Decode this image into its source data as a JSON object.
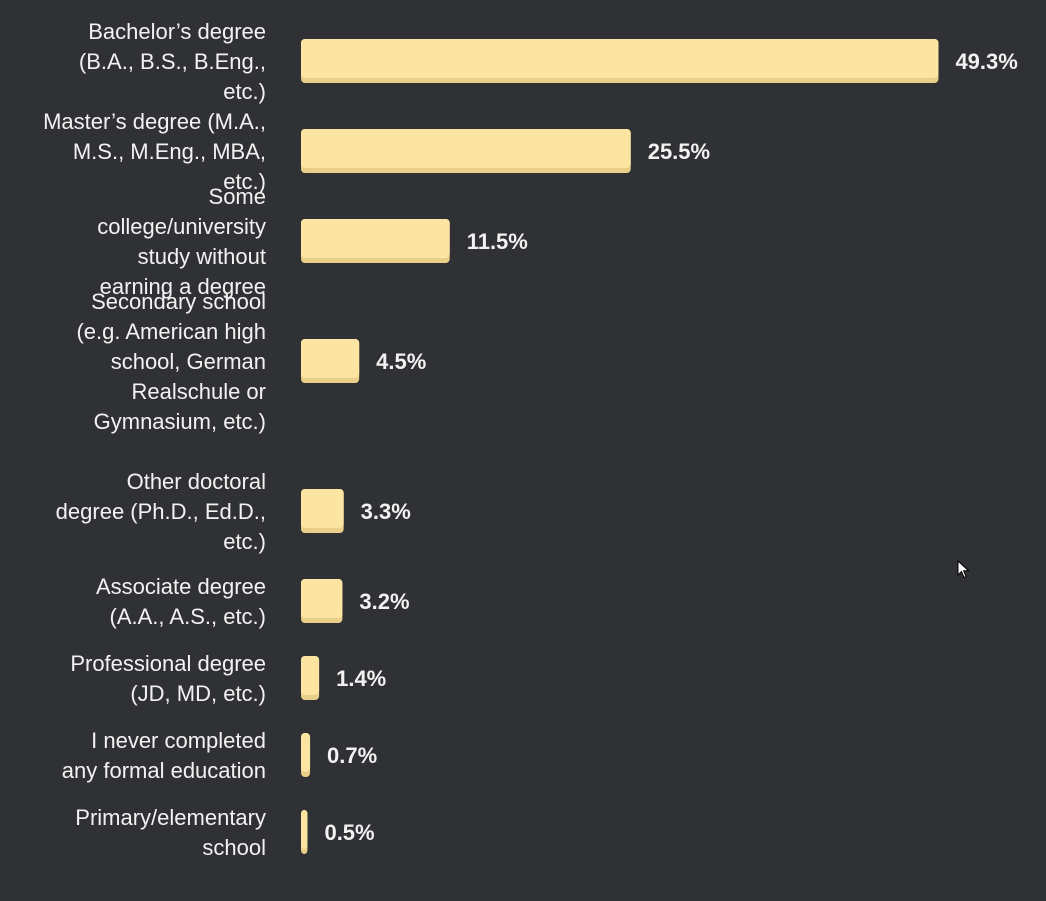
{
  "chart_data": {
    "type": "bar",
    "orientation": "horizontal",
    "colors": {
      "bar": "#fce4a2",
      "bar_shade": "#e9cf8a",
      "text": "#f2f2f2",
      "background": "#2f3134"
    },
    "value_suffix": "%",
    "categories": [
      {
        "label": "Bachelor’s degree (B.A., B.S., B.Eng., etc.)",
        "lines": [
          "Bachelor’s degree",
          "(B.A., B.S., B.Eng.,",
          "etc.)"
        ],
        "value": 49.3
      },
      {
        "label": "Master’s degree (M.A., M.S., M.Eng., MBA, etc.)",
        "lines": [
          "Master’s degree (M.A.,",
          "M.S., M.Eng., MBA,",
          "etc.)"
        ],
        "value": 25.5
      },
      {
        "label": "Some college/university study without earning a degree",
        "lines": [
          "Some",
          "college/university",
          "study without",
          "earning a degree"
        ],
        "value": 11.5
      },
      {
        "label": "Secondary school (e.g. American high school, German Realschule or Gymnasium, etc.)",
        "lines": [
          "Secondary school",
          "(e.g. American high",
          "school, German",
          "Realschule or",
          "Gymnasium, etc.)"
        ],
        "value": 4.5
      },
      {
        "label": "Other doctoral degree (Ph.D., Ed.D., etc.)",
        "lines": [
          "Other doctoral",
          "degree (Ph.D., Ed.D.,",
          "etc.)"
        ],
        "value": 3.3
      },
      {
        "label": "Associate degree (A.A., A.S., etc.)",
        "lines": [
          "Associate degree",
          "(A.A., A.S., etc.)"
        ],
        "value": 3.2
      },
      {
        "label": "Professional degree (JD, MD, etc.)",
        "lines": [
          "Professional degree",
          "(JD, MD, etc.)"
        ],
        "value": 1.4
      },
      {
        "label": "I never completed any formal education",
        "lines": [
          "I never completed",
          "any formal education"
        ],
        "value": 0.7
      },
      {
        "label": "Primary/elementary school",
        "lines": [
          "Primary/elementary",
          "school"
        ],
        "value": 0.5
      }
    ]
  }
}
